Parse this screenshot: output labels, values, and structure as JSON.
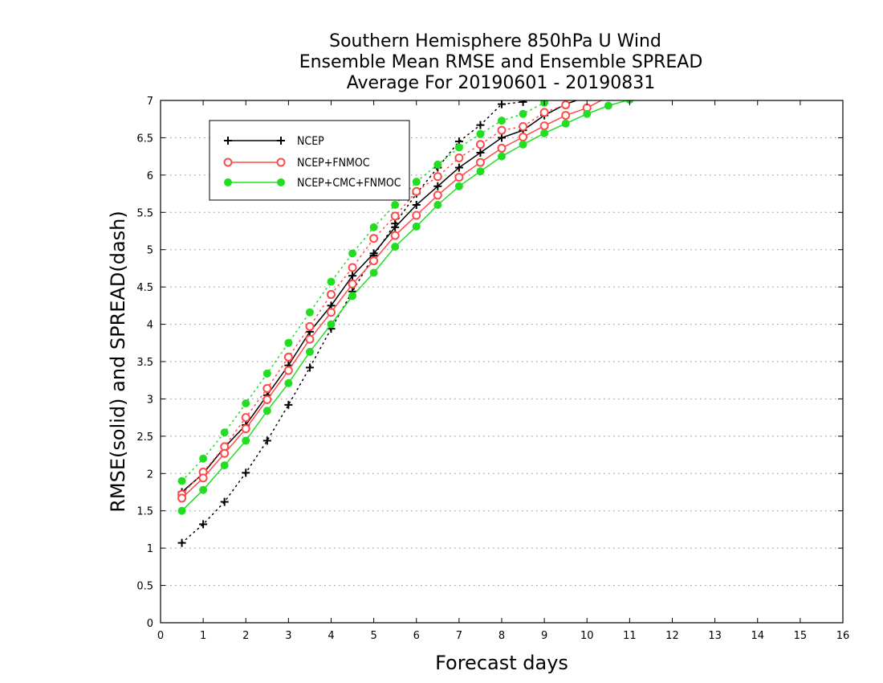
{
  "chart_data": {
    "type": "line",
    "title_lines": [
      "Southern Hemisphere 850hPa U Wind",
      "Ensemble Mean RMSE and Ensemble SPREAD",
      "Average For 20190601 - 20190831"
    ],
    "xlabel": "Forecast days",
    "ylabel": "RMSE(solid) and SPREAD(dash)",
    "xlim": [
      0,
      16
    ],
    "ylim": [
      0,
      7
    ],
    "xticks": [
      "0",
      "1",
      "2",
      "3",
      "4",
      "5",
      "6",
      "7",
      "8",
      "9",
      "10",
      "11",
      "12",
      "13",
      "14",
      "15",
      "16"
    ],
    "yticks": [
      "0",
      "0.5",
      "1",
      "1.5",
      "2",
      "2.5",
      "3",
      "3.5",
      "4",
      "4.5",
      "5",
      "5.5",
      "6",
      "6.5",
      "7"
    ],
    "grid": "horizontal dotted",
    "legend_position": "top-left",
    "legend": [
      "NCEP",
      "NCEP+FNMOC",
      "NCEP+CMC+FNMOC"
    ],
    "series": [
      {
        "name": "NCEP",
        "color": "#000000",
        "marker": "plus",
        "rmse_x": [
          0.5,
          1,
          1.5,
          2,
          2.5,
          3,
          3.5,
          4,
          4.5,
          5,
          5.5,
          6,
          6.5,
          7,
          7.5,
          8,
          8.5,
          9,
          9.5,
          10,
          10.5
        ],
        "rmse_y": [
          1.75,
          2.0,
          2.35,
          2.65,
          3.05,
          3.45,
          3.9,
          4.25,
          4.65,
          4.95,
          5.3,
          5.6,
          5.85,
          6.1,
          6.3,
          6.5,
          6.6,
          6.8,
          6.95,
          7.05,
          7.15
        ],
        "spread_x": [
          0.5,
          1,
          1.5,
          2,
          2.5,
          3,
          3.5,
          4,
          4.5,
          5,
          5.5,
          6,
          6.5,
          7,
          7.5,
          8,
          8.5,
          9
        ],
        "spread_y": [
          1.07,
          1.32,
          1.62,
          2.01,
          2.44,
          2.92,
          3.42,
          3.94,
          4.44,
          4.92,
          5.35,
          5.75,
          6.1,
          6.45,
          6.67,
          6.95,
          6.98,
          7.1
        ]
      },
      {
        "name": "NCEP+FNMOC",
        "color": "#ff4a4a",
        "marker": "open-circle",
        "rmse_x": [
          0.5,
          1,
          1.5,
          2,
          2.5,
          3,
          3.5,
          4,
          4.5,
          5,
          5.5,
          6,
          6.5,
          7,
          7.5,
          8,
          8.5,
          9,
          9.5,
          10,
          10.5
        ],
        "rmse_y": [
          1.67,
          1.94,
          2.27,
          2.6,
          2.99,
          3.38,
          3.8,
          4.16,
          4.54,
          4.85,
          5.19,
          5.46,
          5.73,
          5.97,
          6.17,
          6.36,
          6.51,
          6.66,
          6.8,
          6.9,
          7.05
        ],
        "spread_x": [
          0.5,
          1,
          1.5,
          2,
          2.5,
          3,
          3.5,
          4,
          4.5,
          5,
          5.5,
          6,
          6.5,
          7,
          7.5,
          8,
          8.5,
          9,
          9.5
        ],
        "spread_y": [
          1.72,
          2.02,
          2.36,
          2.75,
          3.14,
          3.56,
          3.97,
          4.4,
          4.76,
          5.15,
          5.45,
          5.78,
          5.98,
          6.23,
          6.41,
          6.6,
          6.65,
          6.84,
          6.94
        ]
      },
      {
        "name": "NCEP+CMC+FNMOC",
        "color": "#22dd22",
        "marker": "filled-circle",
        "rmse_x": [
          0.5,
          1,
          1.5,
          2,
          2.5,
          3,
          3.5,
          4,
          4.5,
          5,
          5.5,
          6,
          6.5,
          7,
          7.5,
          8,
          8.5,
          9,
          9.5,
          10,
          10.5,
          11
        ],
        "rmse_y": [
          1.5,
          1.78,
          2.11,
          2.44,
          2.84,
          3.21,
          3.63,
          4.0,
          4.38,
          4.69,
          5.04,
          5.31,
          5.6,
          5.85,
          6.05,
          6.25,
          6.41,
          6.56,
          6.69,
          6.82,
          6.93,
          7.01
        ],
        "spread_x": [
          0.5,
          1,
          1.5,
          2,
          2.5,
          3,
          3.5,
          4,
          4.5,
          5,
          5.5,
          6,
          6.5,
          7,
          7.5,
          8,
          8.5,
          9
        ],
        "spread_y": [
          1.9,
          2.2,
          2.55,
          2.94,
          3.34,
          3.75,
          4.16,
          4.57,
          4.95,
          5.3,
          5.6,
          5.91,
          6.14,
          6.37,
          6.55,
          6.73,
          6.82,
          6.97
        ]
      }
    ]
  }
}
